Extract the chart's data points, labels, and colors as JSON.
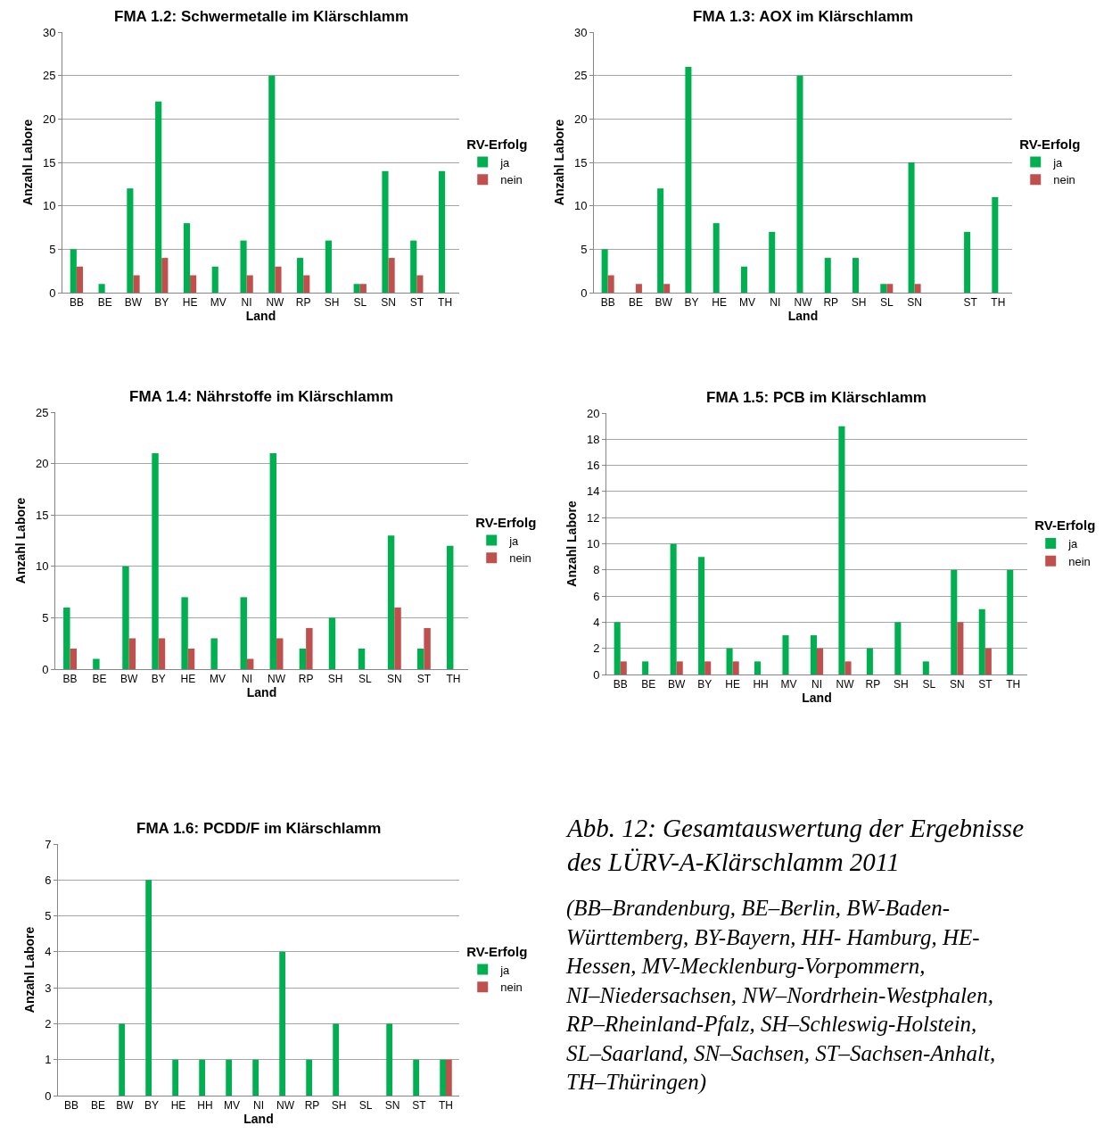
{
  "chart_data": [
    {
      "type": "bar",
      "title": "FMA 1.2: Schwermetalle im Klärschlamm",
      "xlabel": "Land",
      "ylabel": "Anzahl Labore",
      "legend_title": "RV-Erfolg",
      "legend": "right",
      "grid": "y",
      "categories": [
        "BB",
        "BE",
        "BW",
        "BY",
        "HE",
        "MV",
        "NI",
        "NW",
        "RP",
        "SH",
        "SL",
        "SN",
        "ST",
        "TH"
      ],
      "ylim": [
        0,
        30
      ],
      "yticks": [
        0,
        5,
        10,
        15,
        20,
        25,
        30
      ],
      "series": [
        {
          "name": "ja",
          "color": "#00b050",
          "values": [
            5,
            1,
            12,
            22,
            8,
            3,
            6,
            25,
            4,
            6,
            1,
            14,
            6,
            14
          ]
        },
        {
          "name": "nein",
          "color": "#c0504d",
          "values": [
            3,
            0,
            2,
            4,
            2,
            0,
            2,
            3,
            2,
            0,
            1,
            4,
            2,
            0
          ]
        }
      ]
    },
    {
      "type": "bar",
      "title": "FMA 1.3: AOX im Klärschlamm",
      "xlabel": "Land",
      "ylabel": "Anzahl Labore",
      "legend_title": "RV-Erfolg",
      "legend": "right",
      "grid": "y",
      "categories": [
        "BB",
        "BE",
        "BW",
        "BY",
        "HE",
        "MV",
        "NI",
        "NW",
        "RP",
        "SH",
        "SL",
        "SN",
        null,
        "ST",
        "TH"
      ],
      "ylim": [
        0,
        30
      ],
      "yticks": [
        0,
        5,
        10,
        15,
        20,
        25,
        30
      ],
      "series": [
        {
          "name": "ja",
          "color": "#00b050",
          "values": [
            5,
            0,
            12,
            26,
            8,
            3,
            7,
            25,
            4,
            4,
            1,
            15,
            null,
            7,
            11
          ]
        },
        {
          "name": "nein",
          "color": "#c0504d",
          "values": [
            2,
            1,
            1,
            0,
            0,
            0,
            0,
            0,
            0,
            0,
            1,
            1,
            null,
            0,
            0
          ]
        }
      ]
    },
    {
      "type": "bar",
      "title": "FMA 1.4: Nährstoffe im Klärschlamm",
      "xlabel": "Land",
      "ylabel": "Anzahl Labore",
      "legend_title": "RV-Erfolg",
      "legend": "right",
      "grid": "y",
      "categories": [
        "BB",
        "BE",
        "BW",
        "BY",
        "HE",
        "MV",
        "NI",
        "NW",
        "RP",
        "SH",
        "SL",
        "SN",
        "ST",
        "TH"
      ],
      "ylim": [
        0,
        25
      ],
      "yticks": [
        0,
        5,
        10,
        15,
        20,
        25
      ],
      "series": [
        {
          "name": "ja",
          "color": "#00b050",
          "values": [
            6,
            1,
            10,
            21,
            7,
            3,
            7,
            21,
            2,
            5,
            2,
            13,
            2,
            12
          ]
        },
        {
          "name": "nein",
          "color": "#c0504d",
          "values": [
            2,
            0,
            3,
            3,
            2,
            0,
            1,
            3,
            4,
            0,
            0,
            6,
            4,
            0
          ]
        }
      ]
    },
    {
      "type": "bar",
      "title": "FMA 1.5: PCB im Klärschlamm",
      "xlabel": "Land",
      "ylabel": "Anzahl Labore",
      "legend_title": "RV-Erfolg",
      "legend": "right",
      "grid": "y",
      "categories": [
        "BB",
        "BE",
        "BW",
        "BY",
        "HE",
        "HH",
        "MV",
        "NI",
        "NW",
        "RP",
        "SH",
        "SL",
        "SN",
        "ST",
        "TH"
      ],
      "ylim": [
        0,
        20
      ],
      "yticks": [
        0,
        2,
        4,
        6,
        8,
        10,
        12,
        14,
        16,
        18,
        20
      ],
      "series": [
        {
          "name": "ja",
          "color": "#00b050",
          "values": [
            4,
            1,
            10,
            9,
            2,
            1,
            3,
            3,
            19,
            2,
            4,
            1,
            8,
            5,
            8
          ]
        },
        {
          "name": "nein",
          "color": "#c0504d",
          "values": [
            1,
            0,
            1,
            1,
            1,
            0,
            0,
            2,
            1,
            0,
            0,
            0,
            4,
            2,
            0
          ]
        }
      ]
    },
    {
      "type": "bar",
      "title": "FMA 1.6: PCDD/F im Klärschlamm",
      "xlabel": "Land",
      "ylabel": "Anzahl Labore",
      "legend_title": "RV-Erfolg",
      "legend": "right",
      "grid": "y",
      "categories": [
        "BB",
        "BE",
        "BW",
        "BY",
        "HE",
        "HH",
        "MV",
        "NI",
        "NW",
        "RP",
        "SH",
        "SL",
        "SN",
        "ST",
        "TH"
      ],
      "ylim": [
        0,
        7
      ],
      "yticks": [
        0,
        1,
        2,
        3,
        4,
        5,
        6,
        7
      ],
      "series": [
        {
          "name": "ja",
          "color": "#00b050",
          "values": [
            0,
            0,
            2,
            6,
            1,
            1,
            1,
            1,
            4,
            1,
            2,
            0,
            2,
            1,
            1
          ]
        },
        {
          "name": "nein",
          "color": "#c0504d",
          "values": [
            0,
            0,
            0,
            0,
            0,
            0,
            0,
            0,
            0,
            0,
            0,
            0,
            0,
            0,
            1
          ]
        }
      ]
    },
    {
      "type": "other",
      "title": "Abb. 12: Gesamtauswertung der Ergebnisse des LÜRV-A-Klärschlamm 2011",
      "annotations": [
        "(BB–Brandenburg, BE–Berlin, BW-Baden-Württemberg, BY-Bayern, HH- Hamburg, HE-Hessen, MV-Mecklenburg-Vorpommern, NI–Niedersachsen, NW–Nordrhein-Westphalen, RP–Rheinland-Pfalz, SH–Schleswig-Holstein, SL–Saarland, SN–Sachsen, ST–Sachsen-Anhalt, TH–Thüringen)"
      ]
    }
  ]
}
